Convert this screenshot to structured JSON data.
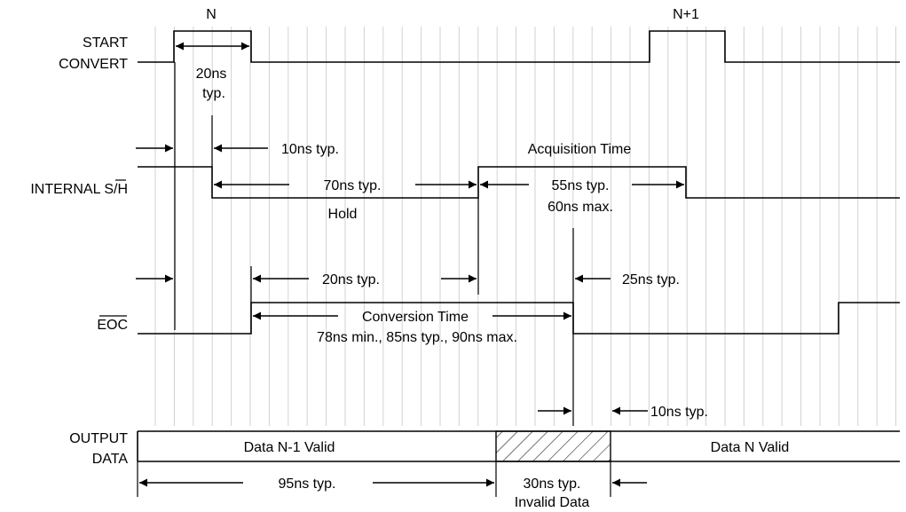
{
  "signals": {
    "start_convert": [
      "START",
      "CONVERT"
    ],
    "internal_sh": "INTERNAL S/H",
    "eoc": "EOC",
    "output_data": [
      "OUTPUT",
      "DATA"
    ]
  },
  "labels": {
    "n": "N",
    "n_plus_1": "N+1",
    "t_20ns": "20ns",
    "t_typ": "typ.",
    "t_10ns_1": "10ns typ.",
    "t_70ns": "70ns typ.",
    "hold": "Hold",
    "acq_time": "Acquisition Time",
    "t_55ns": "55ns typ.",
    "t_60ns": "60ns max.",
    "t_20ns_2": "20ns typ.",
    "t_25ns": "25ns typ.",
    "conv_time": "Conversion Time",
    "conv_values": "78ns min., 85ns typ., 90ns max.",
    "t_10ns_2": "10ns typ.",
    "data_prev": "Data N-1 Valid",
    "data_next": "Data N Valid",
    "t_95ns": "95ns typ.",
    "t_30ns": "30ns typ.",
    "invalid": "Invalid Data"
  }
}
